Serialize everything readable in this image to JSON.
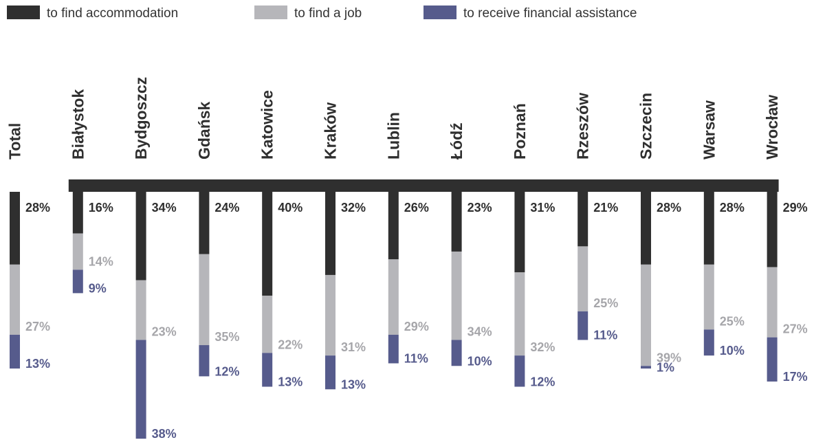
{
  "colors": {
    "accommodation": "#2f2f2f",
    "job": "#b6b6ba",
    "financial": "#565b8c",
    "job_label": "#a6a6aa",
    "axis": "#2f2f2f"
  },
  "chart_data": {
    "type": "bar",
    "stacked": true,
    "orientation": "vertical-down",
    "unit": "%",
    "categories": [
      "Total",
      "Białystok",
      "Bydgoszcz",
      "Gdańsk",
      "Katowice",
      "Kraków",
      "Lublin",
      "Łódź",
      "Poznań",
      "Rzeszów",
      "Szczecin",
      "Warsaw",
      "Wrocław"
    ],
    "series": [
      {
        "name": "to find accommodation",
        "color": "#2f2f2f",
        "values": [
          28,
          16,
          34,
          24,
          40,
          32,
          26,
          23,
          31,
          21,
          28,
          28,
          29
        ]
      },
      {
        "name": "to find a job",
        "color": "#b6b6ba",
        "values": [
          27,
          14,
          23,
          35,
          22,
          31,
          29,
          34,
          32,
          25,
          39,
          25,
          27
        ]
      },
      {
        "name": "to receive financial assistance",
        "color": "#565b8c",
        "values": [
          13,
          9,
          38,
          12,
          13,
          13,
          11,
          10,
          12,
          11,
          1,
          10,
          17
        ]
      }
    ],
    "legend_position": "top-left",
    "grid": false
  }
}
